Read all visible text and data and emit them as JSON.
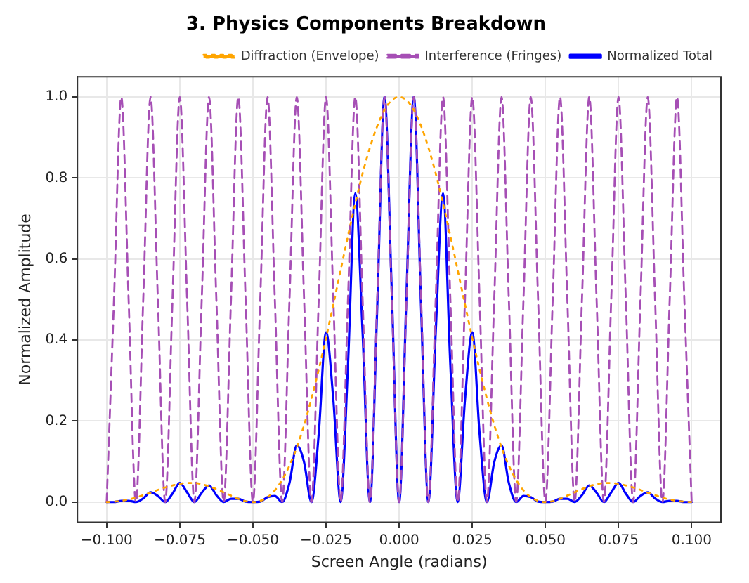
{
  "chart_data": {
    "type": "line",
    "title": "3. Physics Components Breakdown",
    "xlabel": "Screen Angle (radians)",
    "ylabel": "Normalized Amplitude",
    "x": [
      -0.1,
      -0.0975,
      -0.095,
      -0.0925,
      -0.09,
      -0.0875,
      -0.085,
      -0.0825,
      -0.08,
      -0.0775,
      -0.075,
      -0.0725,
      -0.07,
      -0.0675,
      -0.065,
      -0.0625,
      -0.06,
      -0.0575,
      -0.055,
      -0.0525,
      -0.05,
      -0.0475,
      -0.045,
      -0.0425,
      -0.04,
      -0.0375,
      -0.035,
      -0.0325,
      -0.03,
      -0.0275,
      -0.025,
      -0.0225,
      -0.02,
      -0.0175,
      -0.015,
      -0.0125,
      -0.01,
      -0.0075,
      -0.005,
      -0.0025,
      0,
      0.0025,
      0.005,
      0.0075,
      0.01,
      0.0125,
      0.015,
      0.0175,
      0.02,
      0.0225,
      0.025,
      0.0275,
      0.03,
      0.0325,
      0.035,
      0.0375,
      0.04,
      0.0425,
      0.045,
      0.0475,
      0.05,
      0.0525,
      0.055,
      0.0575,
      0.06,
      0.0625,
      0.065,
      0.0675,
      0.07,
      0.0725,
      0.075,
      0.0775,
      0.08,
      0.0825,
      0.085,
      0.0875,
      0.09,
      0.0925,
      0.095,
      0.0975,
      0.1
    ],
    "series": [
      {
        "name": "Diffraction (Envelope)",
        "color": "#ffa500",
        "line_style": "dotted",
        "values": [
          0,
          0.001,
          0.003,
          0.006,
          0.011,
          0.017,
          0.023,
          0.03,
          0.036,
          0.041,
          0.045,
          0.047,
          0.047,
          0.044,
          0.039,
          0.032,
          0.024,
          0.016,
          0.008,
          0.002,
          0,
          0.003,
          0.012,
          0.029,
          0.055,
          0.09,
          0.135,
          0.19,
          0.255,
          0.327,
          0.405,
          0.488,
          0.573,
          0.657,
          0.737,
          0.811,
          0.875,
          0.928,
          0.968,
          0.992,
          1,
          0.992,
          0.968,
          0.928,
          0.875,
          0.811,
          0.737,
          0.657,
          0.573,
          0.488,
          0.405,
          0.327,
          0.255,
          0.19,
          0.135,
          0.09,
          0.055,
          0.029,
          0.012,
          0.003,
          0,
          0.002,
          0.008,
          0.016,
          0.024,
          0.032,
          0.039,
          0.044,
          0.047,
          0.047,
          0.045,
          0.041,
          0.036,
          0.03,
          0.023,
          0.017,
          0.011,
          0.006,
          0.003,
          0.001,
          0
        ]
      },
      {
        "name": "Interference (Fringes)",
        "color": "#a64fb5",
        "line_style": "dashed",
        "values": [
          0,
          0.5,
          1,
          0.5,
          0,
          0.5,
          1,
          0.5,
          0,
          0.5,
          1,
          0.5,
          0,
          0.5,
          1,
          0.5,
          0,
          0.5,
          1,
          0.5,
          0,
          0.5,
          1,
          0.5,
          0,
          0.5,
          1,
          0.5,
          0,
          0.5,
          1,
          0.5,
          0,
          0.5,
          1,
          0.5,
          0,
          0.5,
          1,
          0.5,
          0,
          0.5,
          1,
          0.5,
          0,
          0.5,
          1,
          0.5,
          0,
          0.5,
          1,
          0.5,
          0,
          0.5,
          1,
          0.5,
          0,
          0.5,
          1,
          0.5,
          0,
          0.5,
          1,
          0.5,
          0,
          0.5,
          1,
          0.5,
          0,
          0.5,
          1,
          0.5,
          0,
          0.5,
          1,
          0.5,
          0,
          0.5,
          1,
          0.5,
          0
        ]
      },
      {
        "name": "Normalized Total",
        "color": "#0000ff",
        "line_style": "solid",
        "values": [
          0,
          0,
          0.003,
          0.003,
          0,
          0.009,
          0.024,
          0.015,
          0,
          0.021,
          0.047,
          0.024,
          0,
          0.023,
          0.041,
          0.017,
          0,
          0.008,
          0.008,
          0.001,
          0,
          0.001,
          0.012,
          0.015,
          0,
          0.047,
          0.14,
          0.098,
          0,
          0.169,
          0.419,
          0.252,
          0,
          0.339,
          0.762,
          0.419,
          0,
          0.48,
          1,
          0.513,
          0,
          0.513,
          1,
          0.48,
          0,
          0.419,
          0.762,
          0.339,
          0,
          0.252,
          0.419,
          0.169,
          0,
          0.098,
          0.14,
          0.047,
          0,
          0.015,
          0.012,
          0.001,
          0,
          0.001,
          0.008,
          0.008,
          0,
          0.017,
          0.041,
          0.023,
          0,
          0.024,
          0.047,
          0.021,
          0,
          0.015,
          0.024,
          0.009,
          0,
          0.003,
          0.003,
          0,
          0
        ]
      }
    ],
    "xlim": [
      -0.11,
      0.11
    ],
    "xticks": [
      {
        "value": -0.1,
        "label": "−0.100"
      },
      {
        "value": -0.075,
        "label": "−0.075"
      },
      {
        "value": -0.05,
        "label": "−0.050"
      },
      {
        "value": -0.025,
        "label": "−0.025"
      },
      {
        "value": 0,
        "label": "0.000"
      },
      {
        "value": 0.025,
        "label": "0.025"
      },
      {
        "value": 0.05,
        "label": "0.050"
      },
      {
        "value": 0.075,
        "label": "0.075"
      },
      {
        "value": 0.1,
        "label": "0.100"
      }
    ],
    "ylim": [
      -0.05,
      1.05
    ],
    "yticks": [
      {
        "value": 0,
        "label": "0.0"
      },
      {
        "value": 0.2,
        "label": "0.2"
      },
      {
        "value": 0.4,
        "label": "0.4"
      },
      {
        "value": 0.6,
        "label": "0.6"
      },
      {
        "value": 0.8,
        "label": "0.8"
      },
      {
        "value": 1,
        "label": "1.0"
      }
    ],
    "grid": true,
    "legend": "top right",
    "marker": "none"
  }
}
